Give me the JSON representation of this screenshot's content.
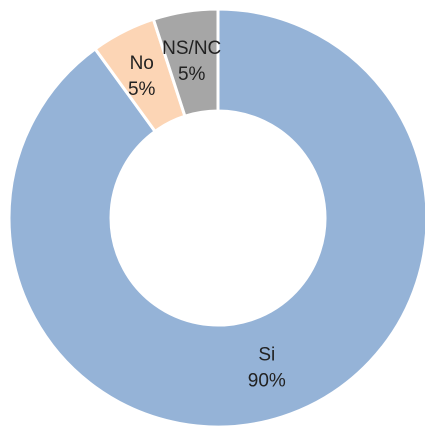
{
  "chart_data": {
    "type": "pie",
    "donut": true,
    "categories": [
      "Si",
      "No",
      "NS/NC"
    ],
    "values": [
      90,
      5,
      5
    ],
    "value_labels": [
      "90%",
      "5%",
      "5%"
    ],
    "colors": [
      "#95b3d7",
      "#fcd5b5",
      "#a6a6a6"
    ]
  }
}
